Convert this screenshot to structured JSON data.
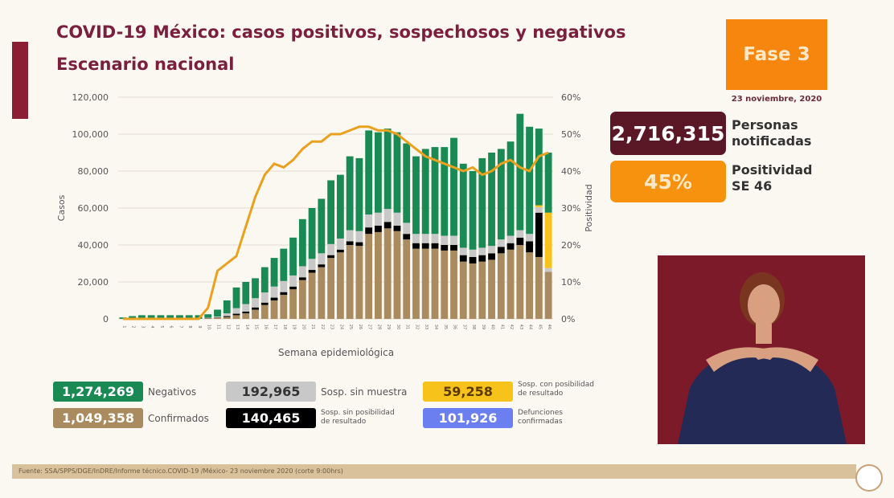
{
  "header": {
    "title": "COVID-19 México: casos positivos, sospechosos y negativos",
    "subtitle": "Escenario nacional",
    "phase": "Fase 3",
    "date": "23 noviembre, 2020"
  },
  "stats": {
    "notified_value": "2,716,315",
    "notified_label_1": "Personas",
    "notified_label_2": "notificadas",
    "positivity_value": "45%",
    "positivity_label_1": "Positividad",
    "positivity_label_2": "SE 46"
  },
  "legend": [
    {
      "value": "1,274,269",
      "label": "Negativos",
      "color": "#1a8a55"
    },
    {
      "value": "1,049,358",
      "label": "Confirmados",
      "color": "#a98b5f"
    },
    {
      "value": "192,965",
      "label": "Sosp. sin muestra",
      "color": "#c8c8c8"
    },
    {
      "value": "140,465",
      "label1": "Sosp. sin posibilidad",
      "label2": "de resultado",
      "color": "#000000"
    },
    {
      "value": "59,258",
      "label1": "Sosp. con posibilidad",
      "label2": "de resultado",
      "color": "#f7c21a"
    },
    {
      "value": "101,926",
      "label1": "Defunciones",
      "label2": "confirmadas",
      "color": "#6b7ff0"
    }
  ],
  "footer": "Fuente: SSA/SPPS/DGE/InDRE/Informe técnico.COVID-19 /México- 23 noviembre 2020 (corte 9:00hrs)",
  "chart_data": {
    "type": "bar",
    "xlabel": "Semana epidemiológica",
    "ylabel": "Casos",
    "y2label": "Positividad",
    "ylim": [
      0,
      120000
    ],
    "y2lim": [
      0,
      60
    ],
    "yticks": [
      "0",
      "20,000",
      "40,000",
      "60,000",
      "80,000",
      "100,000",
      "120,000"
    ],
    "y2ticks": [
      "0%",
      "10%",
      "20%",
      "30%",
      "40%",
      "50%",
      "60%"
    ],
    "categories": [
      1,
      2,
      3,
      4,
      5,
      6,
      7,
      8,
      9,
      10,
      11,
      12,
      13,
      14,
      15,
      16,
      17,
      18,
      19,
      20,
      21,
      22,
      23,
      24,
      25,
      26,
      27,
      28,
      29,
      30,
      31,
      32,
      33,
      34,
      35,
      36,
      37,
      38,
      39,
      40,
      41,
      42,
      43,
      44,
      45,
      46
    ],
    "series": [
      {
        "name": "Confirmados",
        "color": "#a98b5f",
        "values": [
          0,
          0,
          0,
          0,
          0,
          0,
          0,
          0,
          0,
          300,
          600,
          1000,
          2000,
          3000,
          5000,
          7500,
          10000,
          13000,
          16000,
          21000,
          25000,
          28000,
          33000,
          36000,
          40000,
          39500,
          46000,
          47000,
          49000,
          47500,
          43000,
          38000,
          38000,
          38000,
          37000,
          37000,
          31000,
          30000,
          31000,
          32000,
          35500,
          37500,
          40000,
          36000,
          33500,
          25500
        ]
      },
      {
        "name": "Sosp. sin posibilidad de resultado",
        "color": "#000000",
        "values": [
          0,
          0,
          0,
          0,
          0,
          0,
          0,
          0,
          0,
          100,
          200,
          500,
          800,
          1000,
          1200,
          1300,
          1500,
          1500,
          1500,
          1500,
          1500,
          1500,
          1500,
          1500,
          2000,
          2000,
          3500,
          3500,
          3500,
          3000,
          3000,
          3000,
          3000,
          3000,
          3000,
          3000,
          3500,
          3500,
          3500,
          3500,
          3500,
          3500,
          4000,
          6000,
          24000,
          0
        ]
      },
      {
        "name": "Sosp. sin muestra",
        "color": "#c8c8c8",
        "values": [
          0,
          0,
          0,
          0,
          0,
          0,
          0,
          0,
          0,
          200,
          500,
          1500,
          3000,
          4000,
          5000,
          5500,
          6000,
          6000,
          6000,
          6000,
          6000,
          6000,
          6000,
          6000,
          6000,
          6000,
          7000,
          7000,
          7000,
          7000,
          6000,
          5000,
          5000,
          5000,
          5000,
          5000,
          4000,
          4000,
          4000,
          4000,
          4000,
          4000,
          4000,
          4000,
          3000,
          2000
        ]
      },
      {
        "name": "Sosp. con posibilidad de resultado",
        "color": "#f7c21a",
        "values": [
          0,
          0,
          0,
          0,
          0,
          0,
          0,
          0,
          0,
          0,
          0,
          0,
          0,
          0,
          0,
          0,
          0,
          0,
          0,
          0,
          0,
          0,
          0,
          0,
          0,
          0,
          0,
          0,
          0,
          0,
          0,
          0,
          0,
          0,
          0,
          0,
          0,
          0,
          0,
          0,
          0,
          0,
          0,
          0,
          1000,
          30000
        ]
      },
      {
        "name": "Negativos",
        "color": "#1a8a55",
        "values": [
          800,
          1500,
          2000,
          2000,
          2000,
          2000,
          2000,
          2000,
          2000,
          1900,
          3700,
          7000,
          11200,
          12000,
          10800,
          13700,
          15500,
          17500,
          20500,
          25500,
          27500,
          29500,
          34500,
          34500,
          40000,
          39500,
          45500,
          43500,
          43500,
          43500,
          43000,
          42000,
          46000,
          47000,
          48000,
          53000,
          45500,
          42500,
          48500,
          50500,
          49000,
          51000,
          63000,
          58000,
          41500,
          32500
        ]
      }
    ],
    "line": {
      "name": "Positividad",
      "color": "#e9a11e",
      "values": [
        0,
        0,
        0,
        0,
        0,
        0,
        0,
        0,
        0,
        3,
        13,
        15,
        17,
        25,
        33,
        39,
        42,
        41,
        43,
        46,
        48,
        48,
        50,
        50,
        51,
        52,
        52,
        51,
        51,
        50,
        48,
        46,
        44,
        43,
        42,
        41,
        40,
        41,
        39,
        40,
        42,
        43,
        41,
        40,
        44,
        45
      ]
    }
  }
}
